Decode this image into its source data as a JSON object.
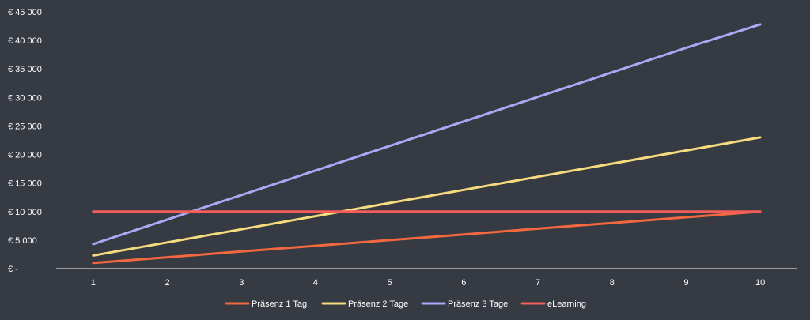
{
  "chart_data": {
    "type": "line",
    "x": [
      1,
      2,
      3,
      4,
      5,
      6,
      7,
      8,
      9,
      10
    ],
    "xlim": [
      0.5,
      10.5
    ],
    "ylim": [
      0,
      45000
    ],
    "y_ticks": [
      {
        "value": 0,
        "label": "€ -"
      },
      {
        "value": 5000,
        "label": "€ 5 000"
      },
      {
        "value": 10000,
        "label": "€ 10 000"
      },
      {
        "value": 15000,
        "label": "€ 15 000"
      },
      {
        "value": 20000,
        "label": "€ 20 000"
      },
      {
        "value": 25000,
        "label": "€ 25 000"
      },
      {
        "value": 30000,
        "label": "€ 30 000"
      },
      {
        "value": 35000,
        "label": "€ 35 000"
      },
      {
        "value": 40000,
        "label": "€ 40 000"
      },
      {
        "value": 45000,
        "label": "€ 45 000"
      }
    ],
    "x_tick_labels": [
      "1",
      "2",
      "3",
      "4",
      "5",
      "6",
      "7",
      "8",
      "9",
      "10"
    ],
    "grid": false,
    "legend_position": "bottom",
    "series": [
      {
        "name": "Präsenz 1 Tag",
        "color": "#f4683f",
        "values": [
          1000,
          2000,
          3000,
          4000,
          5000,
          6000,
          7000,
          8000,
          9000,
          10000
        ]
      },
      {
        "name": "Präsenz 2 Tage",
        "color": "#f6dc7e",
        "values": [
          2300,
          4600,
          6900,
          9200,
          11500,
          13800,
          16100,
          18400,
          20700,
          23000
        ]
      },
      {
        "name": "Präsenz 3 Tage",
        "color": "#a8aaf5",
        "values": [
          4300,
          8600,
          12900,
          17200,
          21500,
          25800,
          30100,
          34400,
          38700,
          42800
        ]
      },
      {
        "name": "eLearning",
        "color": "#f45d59",
        "values": [
          10000,
          10000,
          10000,
          10000,
          10000,
          10000,
          10000,
          10000,
          10000,
          10000
        ]
      }
    ]
  }
}
